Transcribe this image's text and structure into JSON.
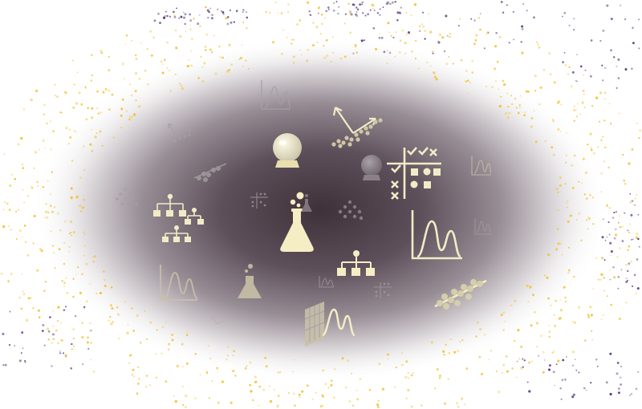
{
  "colors": {
    "background": "#ffffff",
    "glow_center": "#3f3138",
    "glow_mid": "#6a5c66",
    "glow_edge": "#ffffff",
    "icon_primary": "#f5edc4",
    "icon_muted": "#c9c0a8",
    "icon_faint": "#a79fa3",
    "dots_gold": "#f2c12e",
    "dots_purple": "#5b3c86",
    "dots_grey": "#9a90a6"
  },
  "icons": [
    {
      "name": "chemistry-flask-icon",
      "tone": "primary"
    },
    {
      "name": "crystal-ball-icon",
      "tone": "primary"
    },
    {
      "name": "crystal-ball-small-icon",
      "tone": "faint"
    },
    {
      "name": "trend-scatter-arrows-icon",
      "tone": "primary"
    },
    {
      "name": "classification-grid-icon",
      "tone": "primary"
    },
    {
      "name": "distribution-peaks-icon",
      "tone": "primary"
    },
    {
      "name": "hierarchy-tree-icon",
      "tone": "primary"
    },
    {
      "name": "decision-tree-icon",
      "tone": "primary"
    },
    {
      "name": "regression-scatter-icon",
      "tone": "primary"
    },
    {
      "name": "feature-map-peaks-icon",
      "tone": "primary"
    },
    {
      "name": "small-flask-icon",
      "tone": "muted"
    },
    {
      "name": "peaks-chart-icon",
      "tone": "faint"
    },
    {
      "name": "cluster-dots-icon",
      "tone": "faint"
    }
  ]
}
